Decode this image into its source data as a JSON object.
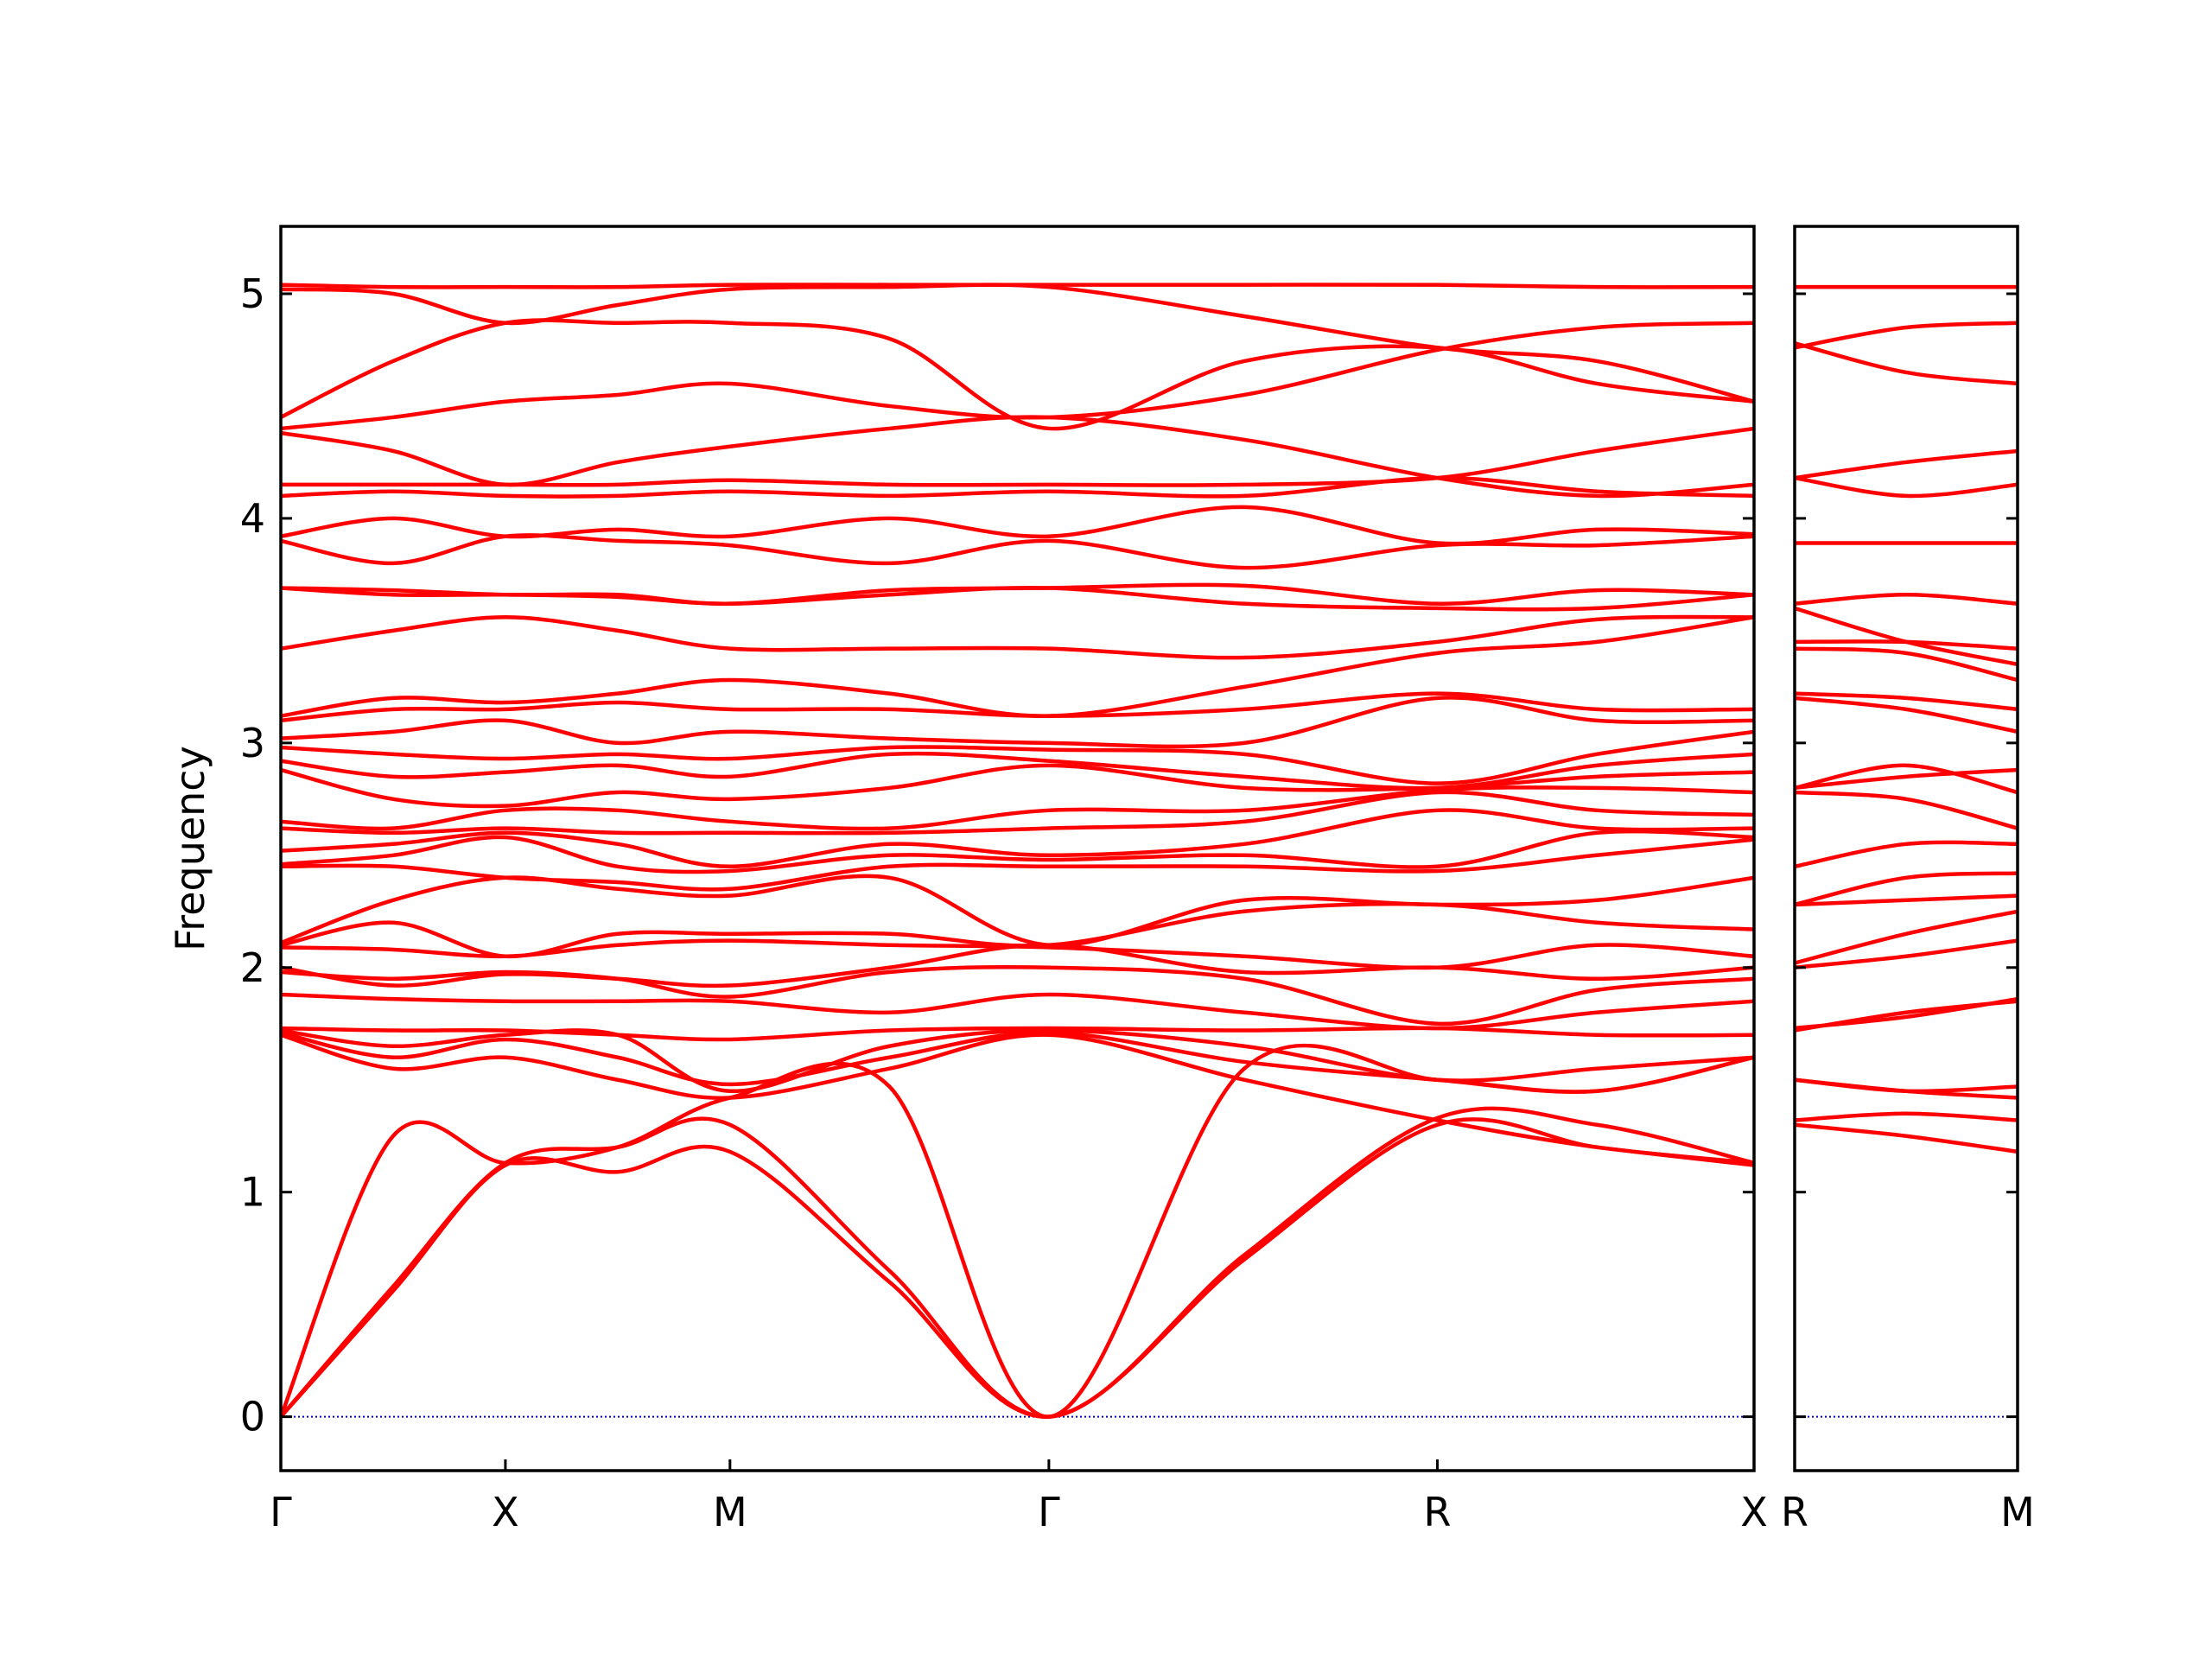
{
  "chart_data": [
    {
      "type": "line",
      "y_label": "Frequency",
      "color": "#ff0000",
      "x": [
        0,
        0.5,
        1.0,
        1.5,
        2.0,
        2.71,
        3.42,
        4.29,
        5.15,
        5.86,
        6.56
      ],
      "xlim": [
        0,
        6.56
      ],
      "xticks": [
        {
          "value": 0,
          "label": "Γ"
        },
        {
          "value": 1.0,
          "label": "X"
        },
        {
          "value": 2.0,
          "label": "M"
        },
        {
          "value": 3.42,
          "label": "Γ"
        },
        {
          "value": 5.15,
          "label": "R"
        },
        {
          "value": 6.56,
          "label": "X"
        }
      ],
      "ylim": [
        -0.24,
        5.3
      ],
      "yticks": [
        0,
        1,
        2,
        3,
        4,
        5
      ],
      "ytick_labels": true,
      "reference_line": {
        "value": 0,
        "color": "#0000cc"
      },
      "series": [
        {
          "values": [
            0,
            0.56,
            1.12,
            1.09,
            1.18,
            0.6,
            0,
            0.7,
            1.3,
            1.2,
            1.12
          ]
        },
        {
          "values": [
            0,
            0.58,
            1.13,
            1.2,
            1.3,
            0.65,
            0,
            0.72,
            1.33,
            1.3,
            1.13
          ]
        },
        {
          "values": [
            0,
            1.25,
            1.13,
            1.2,
            1.42,
            1.47,
            0,
            1.55,
            1.5,
            1.45,
            1.6
          ]
        },
        {
          "values": [
            1.7,
            1.55,
            1.6,
            1.5,
            1.42,
            1.55,
            1.7,
            1.5,
            1.32,
            1.2,
            1.13
          ]
        },
        {
          "values": [
            1.71,
            1.6,
            1.68,
            1.6,
            1.48,
            1.6,
            1.71,
            1.58,
            1.5,
            1.45,
            1.6
          ]
        },
        {
          "values": [
            1.72,
            1.65,
            1.7,
            1.7,
            1.45,
            1.65,
            1.72,
            1.65,
            1.5,
            1.55,
            1.6
          ]
        },
        {
          "values": [
            1.73,
            1.72,
            1.72,
            1.7,
            1.68,
            1.72,
            1.73,
            1.72,
            1.73,
            1.7,
            1.7
          ]
        },
        {
          "values": [
            1.88,
            1.86,
            1.85,
            1.85,
            1.85,
            1.8,
            1.88,
            1.8,
            1.73,
            1.8,
            1.85
          ]
        },
        {
          "values": [
            1.98,
            1.95,
            1.98,
            1.95,
            1.87,
            1.98,
            2.0,
            1.95,
            1.75,
            1.9,
            1.95
          ]
        },
        {
          "values": [
            2.0,
            1.92,
            1.97,
            1.95,
            1.92,
            2.0,
            2.1,
            1.98,
            2.0,
            1.95,
            2.0
          ]
        },
        {
          "values": [
            2.09,
            2.08,
            2.05,
            2.1,
            2.12,
            2.1,
            2.09,
            2.05,
            2.0,
            2.1,
            2.05
          ]
        },
        {
          "values": [
            2.1,
            2.2,
            2.05,
            2.15,
            2.15,
            2.15,
            2.1,
            2.25,
            2.28,
            2.2,
            2.17
          ]
        },
        {
          "values": [
            2.11,
            2.3,
            2.4,
            2.35,
            2.32,
            2.4,
            2.1,
            2.3,
            2.28,
            2.3,
            2.4
          ]
        },
        {
          "values": [
            2.45,
            2.45,
            2.4,
            2.38,
            2.35,
            2.45,
            2.45,
            2.45,
            2.43,
            2.5,
            2.57
          ]
        },
        {
          "values": [
            2.46,
            2.5,
            2.58,
            2.45,
            2.43,
            2.5,
            2.48,
            2.5,
            2.45,
            2.6,
            2.58
          ]
        },
        {
          "values": [
            2.52,
            2.55,
            2.6,
            2.55,
            2.45,
            2.55,
            2.5,
            2.55,
            2.7,
            2.62,
            2.62
          ]
        },
        {
          "values": [
            2.62,
            2.6,
            2.62,
            2.6,
            2.6,
            2.6,
            2.62,
            2.65,
            2.78,
            2.7,
            2.68
          ]
        },
        {
          "values": [
            2.65,
            2.62,
            2.7,
            2.7,
            2.65,
            2.62,
            2.7,
            2.7,
            2.79,
            2.8,
            2.78
          ]
        },
        {
          "values": [
            2.88,
            2.75,
            2.72,
            2.78,
            2.75,
            2.8,
            2.9,
            2.8,
            2.8,
            2.85,
            2.87
          ]
        },
        {
          "values": [
            2.92,
            2.85,
            2.87,
            2.9,
            2.85,
            2.95,
            2.92,
            2.85,
            2.8,
            2.9,
            2.95
          ]
        },
        {
          "values": [
            2.98,
            2.95,
            2.93,
            2.95,
            2.93,
            2.98,
            2.97,
            2.95,
            2.82,
            2.95,
            3.05
          ]
        },
        {
          "values": [
            3.02,
            3.05,
            3.1,
            3.0,
            3.05,
            3.02,
            3.0,
            3.0,
            3.2,
            3.1,
            3.1
          ]
        },
        {
          "values": [
            3.1,
            3.15,
            3.15,
            3.18,
            3.15,
            3.15,
            3.12,
            3.15,
            3.22,
            3.15,
            3.15
          ]
        },
        {
          "values": [
            3.12,
            3.2,
            3.18,
            3.22,
            3.28,
            3.22,
            3.12,
            3.25,
            3.4,
            3.45,
            3.56
          ]
        },
        {
          "values": [
            3.42,
            3.5,
            3.56,
            3.5,
            3.42,
            3.42,
            3.42,
            3.38,
            3.45,
            3.55,
            3.56
          ]
        },
        {
          "values": [
            3.69,
            3.66,
            3.66,
            3.65,
            3.62,
            3.66,
            3.69,
            3.62,
            3.6,
            3.6,
            3.66
          ]
        },
        {
          "values": [
            3.69,
            3.68,
            3.66,
            3.66,
            3.62,
            3.68,
            3.69,
            3.7,
            3.62,
            3.68,
            3.66
          ]
        },
        {
          "values": [
            3.9,
            3.8,
            3.92,
            3.9,
            3.88,
            3.8,
            3.9,
            3.78,
            3.88,
            3.88,
            3.92
          ]
        },
        {
          "values": [
            3.92,
            4.0,
            3.92,
            3.95,
            3.92,
            4.0,
            3.92,
            4.05,
            3.89,
            3.95,
            3.93
          ]
        },
        {
          "values": [
            4.1,
            4.12,
            4.1,
            4.1,
            4.12,
            4.1,
            4.12,
            4.1,
            4.18,
            4.12,
            4.1
          ]
        },
        {
          "values": [
            4.15,
            4.15,
            4.15,
            4.15,
            4.17,
            4.15,
            4.15,
            4.15,
            4.18,
            4.3,
            4.4
          ]
        },
        {
          "values": [
            4.38,
            4.3,
            4.15,
            4.25,
            4.32,
            4.4,
            4.45,
            4.35,
            4.18,
            4.1,
            4.15
          ]
        },
        {
          "values": [
            4.4,
            4.45,
            4.52,
            4.55,
            4.6,
            4.5,
            4.45,
            4.55,
            4.75,
            4.85,
            4.87
          ]
        },
        {
          "values": [
            4.45,
            4.7,
            4.87,
            4.87,
            4.87,
            4.8,
            4.4,
            4.7,
            4.76,
            4.6,
            4.52
          ]
        },
        {
          "values": [
            5.02,
            5.0,
            4.87,
            4.95,
            5.02,
            5.03,
            5.03,
            4.9,
            4.76,
            4.7,
            4.52
          ]
        },
        {
          "values": [
            5.04,
            5.03,
            5.03,
            5.03,
            5.04,
            5.04,
            5.04,
            5.04,
            5.04,
            5.03,
            5.03
          ]
        }
      ]
    },
    {
      "type": "line",
      "color": "#ff0000",
      "x": [
        0,
        0.5,
        1.0
      ],
      "xlim": [
        0,
        1.0
      ],
      "xticks": [
        {
          "value": 0,
          "label": "R"
        },
        {
          "value": 1.0,
          "label": "M"
        }
      ],
      "ylim": [
        -0.24,
        5.3
      ],
      "yticks": [
        0,
        1,
        2,
        3,
        4,
        5
      ],
      "ytick_labels": false,
      "reference_line": {
        "value": 0,
        "color": "#0000cc"
      },
      "series": [
        {
          "values": [
            1.3,
            1.25,
            1.18
          ]
        },
        {
          "values": [
            1.32,
            1.35,
            1.32
          ]
        },
        {
          "values": [
            1.5,
            1.45,
            1.42
          ]
        },
        {
          "values": [
            1.5,
            1.45,
            1.47
          ]
        },
        {
          "values": [
            1.72,
            1.8,
            1.85
          ]
        },
        {
          "values": [
            1.73,
            1.78,
            1.86
          ]
        },
        {
          "values": [
            2.0,
            2.05,
            2.12
          ]
        },
        {
          "values": [
            2.02,
            2.15,
            2.25
          ]
        },
        {
          "values": [
            2.28,
            2.3,
            2.32
          ]
        },
        {
          "values": [
            2.28,
            2.4,
            2.42
          ]
        },
        {
          "values": [
            2.45,
            2.55,
            2.55
          ]
        },
        {
          "values": [
            2.78,
            2.75,
            2.62
          ]
        },
        {
          "values": [
            2.8,
            2.9,
            2.78
          ]
        },
        {
          "values": [
            2.8,
            2.85,
            2.88
          ]
        },
        {
          "values": [
            3.2,
            3.15,
            3.05
          ]
        },
        {
          "values": [
            3.22,
            3.2,
            3.15
          ]
        },
        {
          "values": [
            3.42,
            3.4,
            3.28
          ]
        },
        {
          "values": [
            3.45,
            3.45,
            3.42
          ]
        },
        {
          "values": [
            3.6,
            3.45,
            3.35
          ]
        },
        {
          "values": [
            3.62,
            3.66,
            3.62
          ]
        },
        {
          "values": [
            3.89,
            3.89,
            3.89
          ]
        },
        {
          "values": [
            4.18,
            4.25,
            4.3
          ]
        },
        {
          "values": [
            4.18,
            4.1,
            4.15
          ]
        },
        {
          "values": [
            4.76,
            4.85,
            4.87
          ]
        },
        {
          "values": [
            4.78,
            4.65,
            4.6
          ]
        },
        {
          "values": [
            5.03,
            5.03,
            5.03
          ]
        }
      ]
    }
  ]
}
